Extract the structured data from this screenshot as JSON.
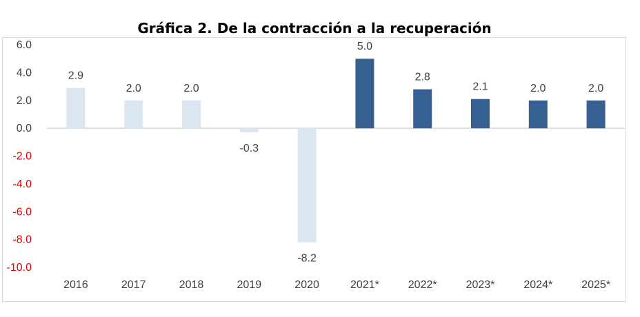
{
  "chart_data": {
    "type": "bar",
    "title": "Gráfica 2. De la contracción a la recuperación",
    "xlabel": "",
    "ylabel": "",
    "ylim": [
      -10,
      6
    ],
    "y_ticks": [
      "6.0",
      "4.0",
      "2.0",
      "0.0",
      "-2.0",
      "-4.0",
      "-6.0",
      "-8.0",
      "-10.0"
    ],
    "categories": [
      "2016",
      "2017",
      "2018",
      "2019",
      "2020",
      "2021*",
      "2022*",
      "2023*",
      "2024*",
      "2025*"
    ],
    "values": [
      2.9,
      2.0,
      2.0,
      -0.3,
      -8.2,
      5.0,
      2.8,
      2.1,
      2.0,
      2.0
    ],
    "value_labels": [
      "2.9",
      "2.0",
      "2.0",
      "-0.3",
      "-8.2",
      "5.0",
      "2.8",
      "2.1",
      "2.0",
      "2.0"
    ],
    "grid": false,
    "legend": "none",
    "colors": {
      "observed": "#dce6f1",
      "projected": "#376092",
      "negative_text": "#e00000",
      "text": "#404040"
    },
    "projected_from_index": 5
  }
}
